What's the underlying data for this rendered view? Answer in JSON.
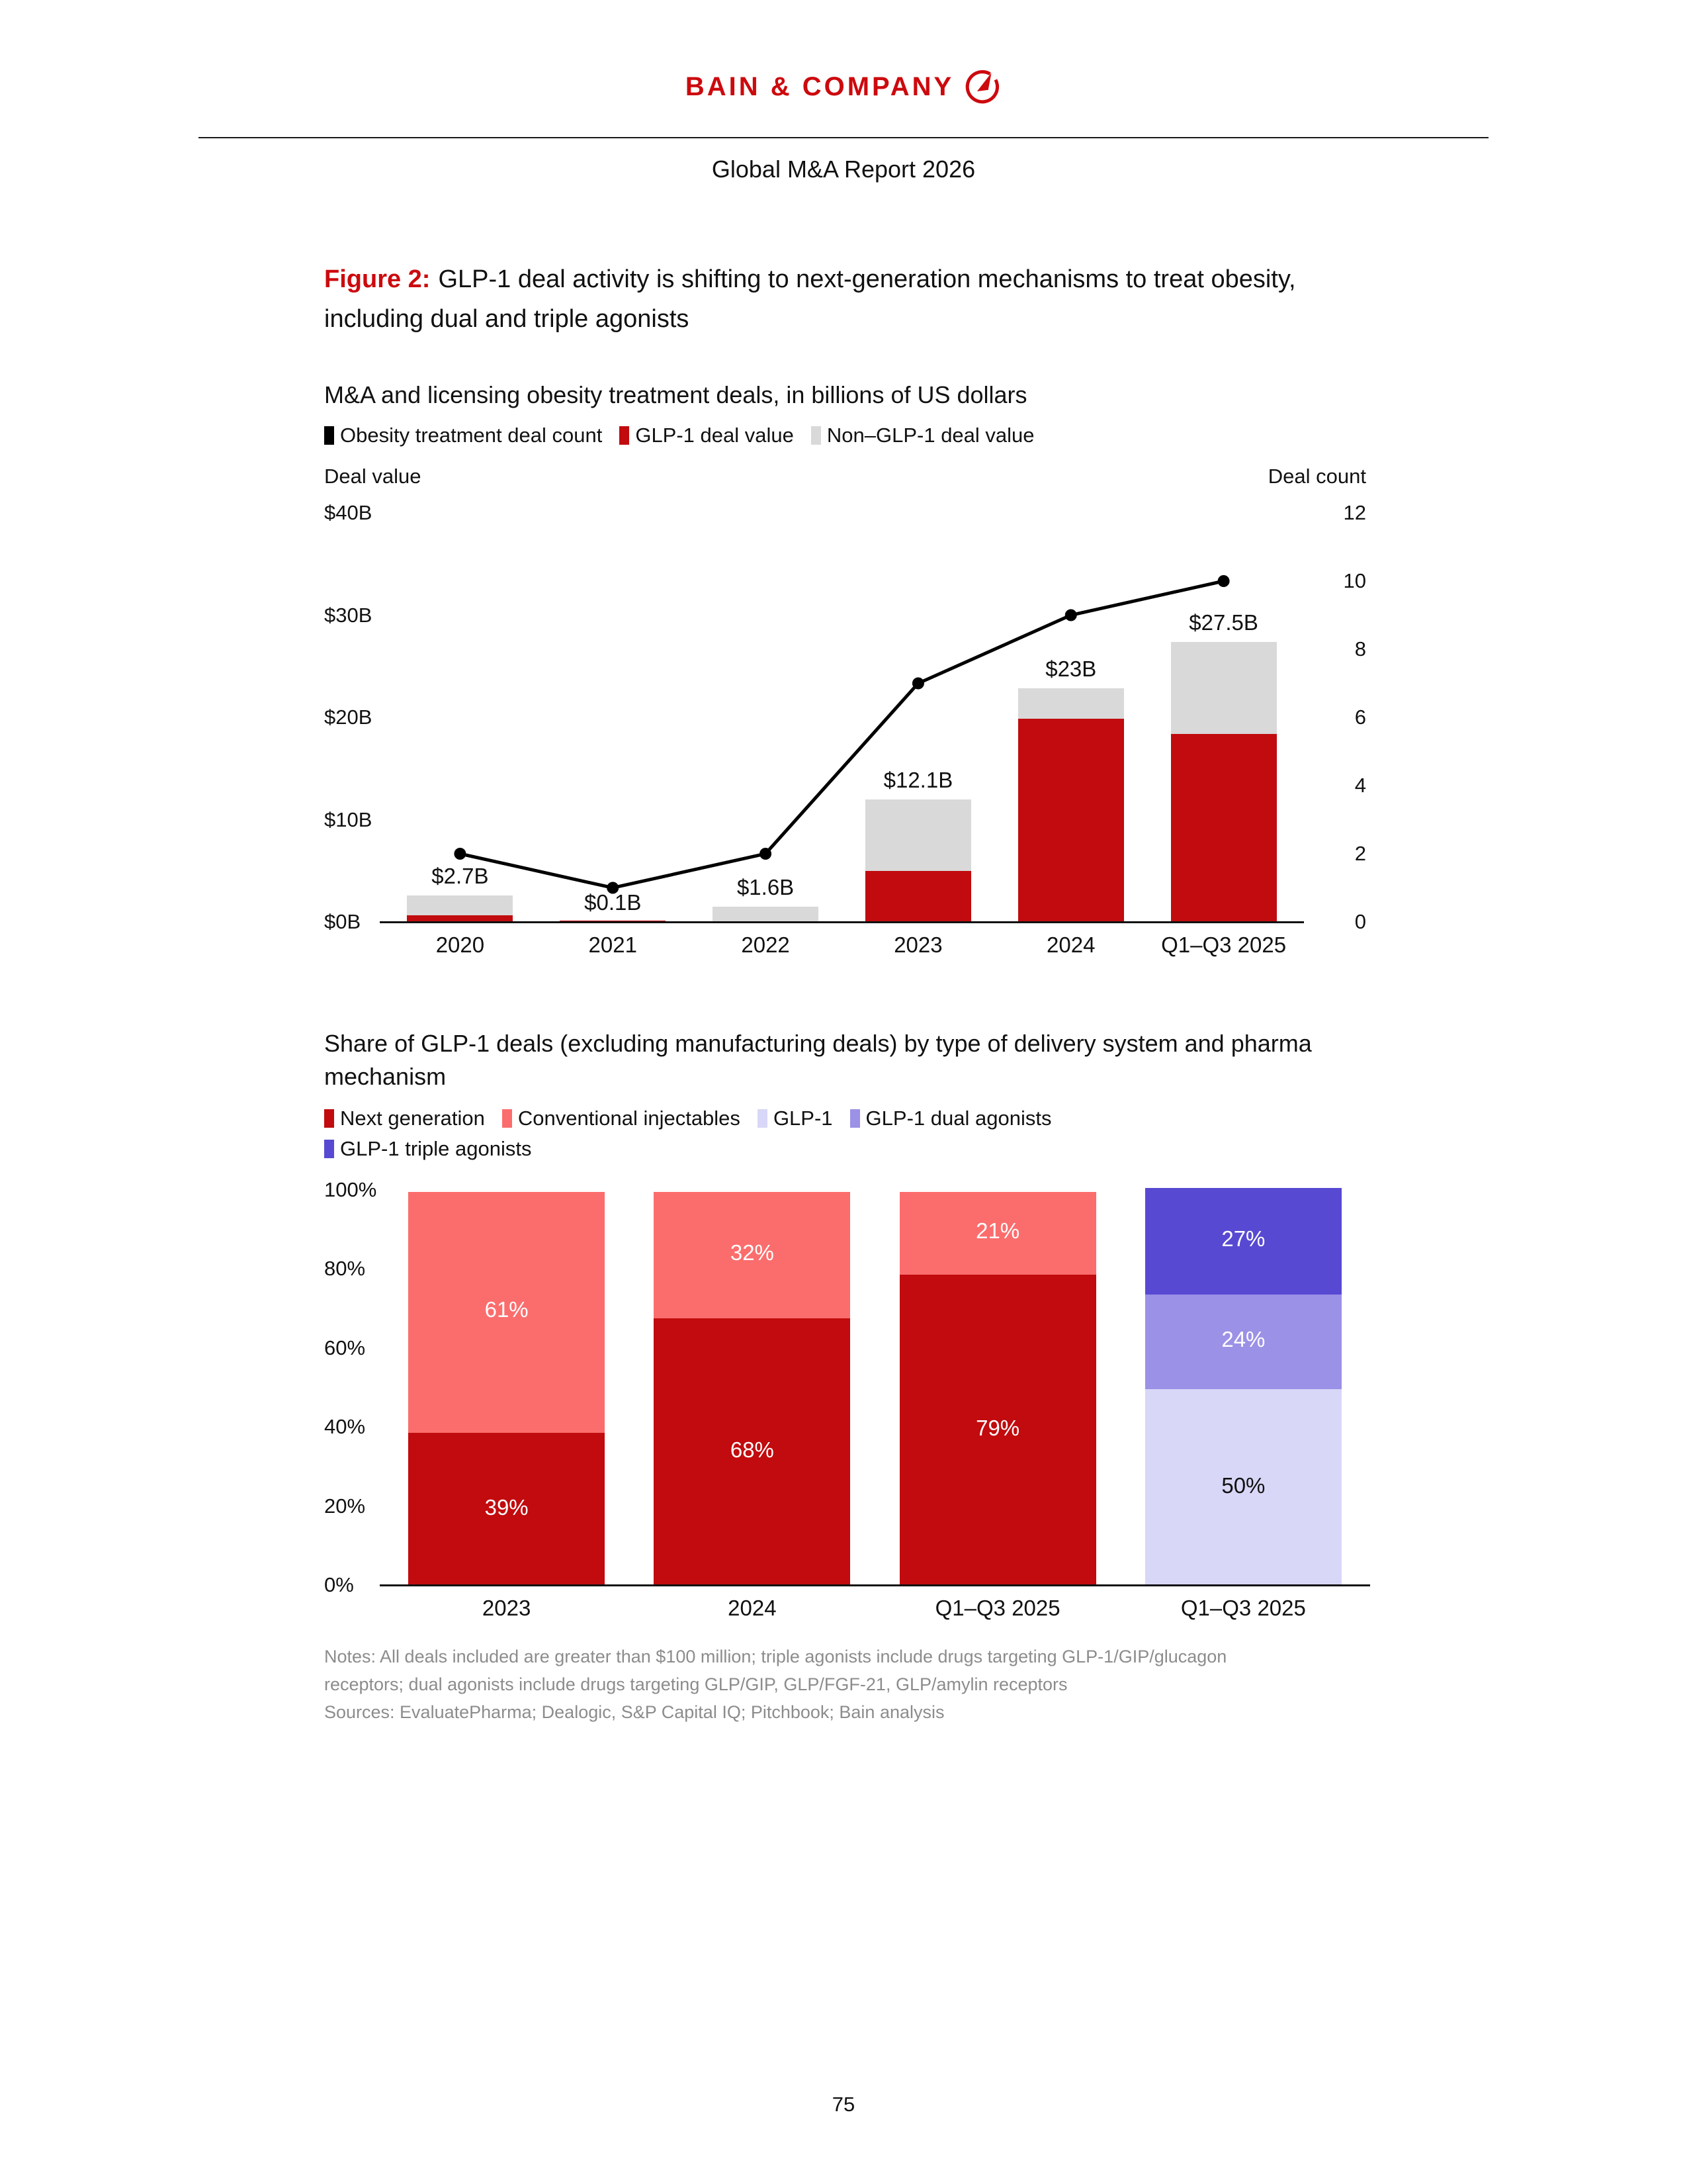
{
  "page": {
    "brand": "BAIN & COMPANY",
    "report_title": "Global M&A Report 2026",
    "page_number": "75"
  },
  "figure": {
    "label": "Figure 2:",
    "title": "GLP-1 deal activity is shifting to next-generation mechanisms to treat obesity, including dual and triple agonists"
  },
  "notes": {
    "lines": [
      "Notes: All deals included are greater than $100 million; triple agonists include drugs targeting GLP-1/GIP/glucagon",
      "receptors; dual agonists include drugs targeting GLP/GIP, GLP/FGF-21, GLP/amylin receptors",
      "Sources: EvaluatePharma; Dealogic, S&P Capital IQ; Pitchbook; Bain analysis"
    ]
  },
  "colors": {
    "brand_red": "#cc0a0e",
    "glp1_red": "#c10b0e",
    "non_glp1_gray": "#d9d9d9",
    "line_black": "#000000",
    "notes_gray": "#8c8c8c"
  },
  "chart_data": [
    {
      "type": "bar",
      "variant": "stacked_bars_with_count_line",
      "title": "M&A and licensing obesity treatment deals, in billions of US dollars",
      "categories": [
        "2020",
        "2021",
        "2022",
        "2023",
        "2024",
        "Q1–Q3 2025"
      ],
      "series": [
        {
          "name": "GLP-1 deal value",
          "color": "#c10b0e",
          "values": [
            0.8,
            0.1,
            0.1,
            5.1,
            20,
            18.5
          ]
        },
        {
          "name": "Non–GLP-1 deal value",
          "color": "#d9d9d9",
          "values": [
            1.9,
            0,
            1.5,
            7,
            3,
            9
          ]
        }
      ],
      "line": {
        "name": "Obesity treatment deal count",
        "color": "#000000",
        "values": [
          2,
          1,
          2,
          7,
          9,
          10
        ]
      },
      "total_labels": [
        "$2.7B",
        "$0.1B",
        "$1.6B",
        "$12.1B",
        "$23B",
        "$27.5B"
      ],
      "left_axis": {
        "title": "Deal value",
        "max": 40,
        "ticks": [
          {
            "label": "$40B",
            "value": 40
          },
          {
            "label": "$30B",
            "value": 30
          },
          {
            "label": "$20B",
            "value": 20
          },
          {
            "label": "$10B",
            "value": 10
          },
          {
            "label": "$0B",
            "value": 0
          }
        ]
      },
      "right_axis": {
        "title": "Deal count",
        "max": 12,
        "ticks": [
          {
            "label": "12",
            "value": 12
          },
          {
            "label": "10",
            "value": 10
          },
          {
            "label": "8",
            "value": 8
          },
          {
            "label": "6",
            "value": 6
          },
          {
            "label": "4",
            "value": 4
          },
          {
            "label": "2",
            "value": 2
          },
          {
            "label": "0",
            "value": 0
          }
        ]
      },
      "legend": [
        {
          "label": "Obesity treatment deal count",
          "color": "#000000"
        },
        {
          "label": "GLP-1 deal value",
          "color": "#c10b0e"
        },
        {
          "label": "Non–GLP-1 deal value",
          "color": "#d9d9d9"
        }
      ]
    },
    {
      "type": "bar",
      "variant": "stacked_100pct",
      "title": "Share of GLP-1 deals (excluding manufacturing deals) by type of delivery system and pharma mechanism",
      "y_axis": {
        "max": 100,
        "ticks": [
          {
            "label": "100%",
            "value": 100
          },
          {
            "label": "80%",
            "value": 80
          },
          {
            "label": "60%",
            "value": 60
          },
          {
            "label": "40%",
            "value": 40
          },
          {
            "label": "20%",
            "value": 20
          },
          {
            "label": "0%",
            "value": 0
          }
        ]
      },
      "legend": [
        {
          "label": "Next generation",
          "color": "#c10b0e"
        },
        {
          "label": "Conventional injectables",
          "color": "#fb6d6d"
        },
        {
          "label": "GLP-1",
          "color": "#d8d7f7"
        },
        {
          "label": "GLP-1 dual agonists",
          "color": "#9b91e6"
        },
        {
          "label": "GLP-1 triple agonists",
          "color": "#5849d2"
        }
      ],
      "bars": [
        {
          "category": "2023",
          "segments": [
            {
              "name": "Next generation",
              "value": 39,
              "label": "39%",
              "color": "#c10b0e",
              "label_color": "#ffffff"
            },
            {
              "name": "Conventional injectables",
              "value": 61,
              "label": "61%",
              "color": "#fb6d6d",
              "label_color": "#ffffff"
            }
          ]
        },
        {
          "category": "2024",
          "segments": [
            {
              "name": "Next generation",
              "value": 68,
              "label": "68%",
              "color": "#c10b0e",
              "label_color": "#ffffff"
            },
            {
              "name": "Conventional injectables",
              "value": 32,
              "label": "32%",
              "color": "#fb6d6d",
              "label_color": "#ffffff"
            }
          ]
        },
        {
          "category": "Q1–Q3 2025",
          "segments": [
            {
              "name": "Next generation",
              "value": 79,
              "label": "79%",
              "color": "#c10b0e",
              "label_color": "#ffffff"
            },
            {
              "name": "Conventional injectables",
              "value": 21,
              "label": "21%",
              "color": "#fb6d6d",
              "label_color": "#ffffff"
            }
          ]
        },
        {
          "category": "Q1–Q3 2025",
          "segments": [
            {
              "name": "GLP-1",
              "value": 50,
              "label": "50%",
              "color": "#d8d7f7",
              "label_color": "#111111"
            },
            {
              "name": "GLP-1 dual agonists",
              "value": 24,
              "label": "24%",
              "color": "#9b91e6",
              "label_color": "#ffffff"
            },
            {
              "name": "GLP-1 triple agonists",
              "value": 27,
              "label": "27%",
              "color": "#5849d2",
              "label_color": "#ffffff"
            }
          ]
        }
      ]
    }
  ]
}
